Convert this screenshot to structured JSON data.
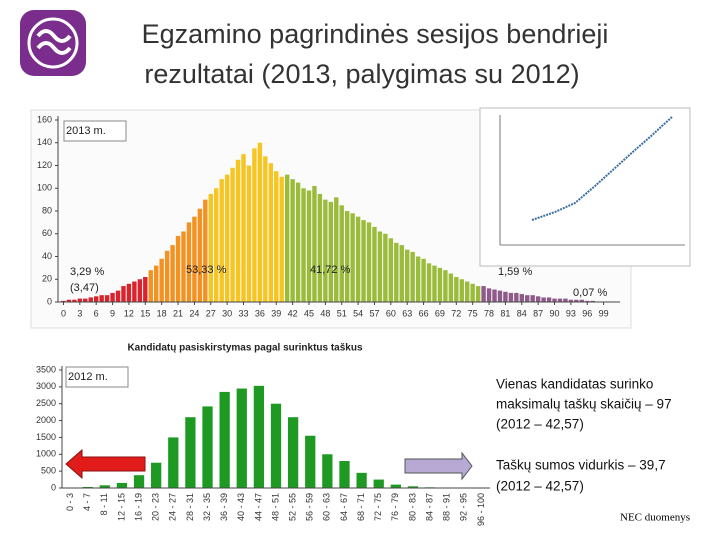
{
  "header": {
    "title": [
      "Egzamino pagrindinės sesijos bendrieji",
      "rezultatai (2013, palygimas su 2012)"
    ]
  },
  "chart_data": [
    {
      "type": "bar",
      "caption": "Kandidatų pasiskirstymas pagal surinktus taškus",
      "annotations": [
        "2013 m.",
        "3,29 %",
        "(3,47)",
        "53,33 %",
        "41,72 %",
        "1,59 %",
        "0,07 %"
      ],
      "xlim": [
        -1,
        102
      ],
      "ylim": [
        0,
        160
      ],
      "yticks": [
        0,
        20,
        40,
        60,
        80,
        100,
        120,
        140,
        160
      ],
      "xticks": [
        0,
        3,
        6,
        9,
        12,
        15,
        18,
        21,
        24,
        27,
        30,
        33,
        36,
        39,
        42,
        45,
        48,
        51,
        54,
        57,
        60,
        63,
        66,
        69,
        72,
        75,
        78,
        81,
        84,
        87,
        90,
        93,
        96,
        99
      ],
      "series": [
        {
          "color": "#d9232d",
          "x": [
            0,
            1,
            2,
            3,
            4,
            5,
            6,
            7,
            8,
            9,
            10,
            11,
            12,
            13,
            14,
            15
          ],
          "values": [
            1,
            2,
            2,
            3,
            3,
            4,
            5,
            6,
            6,
            8,
            10,
            14,
            16,
            18,
            20,
            22
          ]
        },
        {
          "color": "#f39220",
          "x": [
            16,
            17,
            18,
            19,
            20,
            21,
            22,
            23,
            24,
            25,
            26
          ],
          "values": [
            28,
            32,
            38,
            45,
            50,
            58,
            62,
            70,
            75,
            82,
            90
          ]
        },
        {
          "color": "#f6c521",
          "x": [
            27,
            28,
            29,
            30,
            31,
            32,
            33,
            34,
            35,
            36,
            37,
            38,
            39,
            40
          ],
          "values": [
            95,
            100,
            108,
            112,
            118,
            125,
            130,
            120,
            135,
            140,
            128,
            122,
            115,
            110
          ]
        },
        {
          "color": "#9bbb3b",
          "x": [
            41,
            42,
            43,
            44,
            45,
            46,
            47,
            48,
            49,
            50,
            51,
            52,
            53,
            54,
            55,
            56,
            57,
            58,
            59,
            60,
            61,
            62,
            63,
            64,
            65,
            66,
            67,
            68,
            69,
            70,
            71,
            72,
            73,
            74,
            75,
            76
          ],
          "values": [
            112,
            108,
            105,
            100,
            98,
            102,
            95,
            90,
            88,
            92,
            85,
            80,
            78,
            75,
            72,
            70,
            66,
            62,
            60,
            56,
            52,
            50,
            46,
            44,
            40,
            38,
            34,
            32,
            30,
            28,
            25,
            22,
            20,
            18,
            16,
            14
          ]
        },
        {
          "color": "#8e5a8a",
          "x": [
            77,
            78,
            79,
            80,
            81,
            82,
            83,
            84,
            85,
            86,
            87,
            88,
            89,
            90,
            91,
            92,
            93,
            94,
            95,
            96,
            97
          ],
          "values": [
            14,
            12,
            11,
            10,
            9,
            8,
            8,
            7,
            6,
            6,
            5,
            4,
            4,
            3,
            3,
            3,
            2,
            2,
            2,
            1,
            1
          ]
        }
      ]
    },
    {
      "type": "bar",
      "label": "2012 m.",
      "color": "#1e9a22",
      "ylim": [
        0,
        3500
      ],
      "yticks": [
        0,
        500,
        1000,
        1500,
        2000,
        2500,
        3000,
        3500
      ],
      "categories": [
        "0 - 3",
        "4 - 7",
        "8 - 11",
        "12 - 15",
        "16 - 19",
        "20 - 23",
        "24 - 27",
        "28 - 31",
        "32 - 35",
        "36 - 39",
        "40 - 43",
        "44 - 47",
        "48 - 51",
        "52 - 55",
        "56 - 59",
        "60 - 63",
        "64 - 67",
        "68 - 71",
        "72 - 75",
        "76 - 79",
        "80 - 83",
        "84 - 87",
        "88 - 91",
        "92 - 95",
        "96 - 100"
      ],
      "values": [
        10,
        30,
        80,
        150,
        380,
        750,
        1500,
        2100,
        2420,
        2850,
        2950,
        3030,
        2500,
        2100,
        1550,
        1000,
        800,
        450,
        250,
        100,
        50,
        20,
        10,
        5,
        2
      ]
    }
  ],
  "notes": [
    "Vienas  kandidatas surinko",
    "maksimalų taškų  skaičių – 97",
    "(2012 – 42,57)",
    "Taškų sumos vidurkis –  39,7",
    "(2012 – 42,57)"
  ],
  "source": "NEC duomenys"
}
